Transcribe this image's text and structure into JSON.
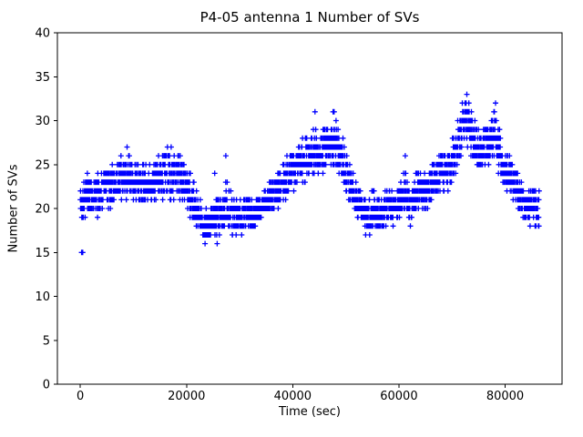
{
  "chart_data": {
    "type": "scatter",
    "title": "P4-05 antenna 1 Number of SVs",
    "xlabel": "Time (sec)",
    "ylabel": "Number of SVs",
    "xlim": [
      -4320,
      90720
    ],
    "ylim": [
      0,
      40
    ],
    "xticks": [
      0,
      20000,
      40000,
      60000,
      80000
    ],
    "yticks": [
      0,
      5,
      10,
      15,
      20,
      25,
      30,
      35,
      40
    ],
    "grid": false,
    "legend": "none",
    "marker": "+",
    "marker_color": "#0000ff",
    "sample_interval_sec": 30,
    "x_range_sec": [
      0,
      86400
    ],
    "band": [
      [
        0,
        18,
        23
      ],
      [
        1000,
        19,
        24
      ],
      [
        3000,
        19,
        24
      ],
      [
        5000,
        20,
        25
      ],
      [
        7000,
        20,
        26
      ],
      [
        9000,
        21,
        26
      ],
      [
        11000,
        20,
        26
      ],
      [
        13000,
        20,
        25
      ],
      [
        15000,
        21,
        26
      ],
      [
        16000,
        21,
        27
      ],
      [
        18000,
        21,
        27
      ],
      [
        19500,
        21,
        26
      ],
      [
        20500,
        19,
        24
      ],
      [
        21500,
        18,
        23
      ],
      [
        22500,
        17,
        21
      ],
      [
        23500,
        16,
        20
      ],
      [
        24500,
        16,
        21
      ],
      [
        25500,
        16,
        22
      ],
      [
        26500,
        17,
        22
      ],
      [
        27500,
        17,
        24
      ],
      [
        28500,
        17,
        22
      ],
      [
        29500,
        17,
        21
      ],
      [
        31000,
        17,
        22
      ],
      [
        32500,
        17,
        21
      ],
      [
        33500,
        18,
        22
      ],
      [
        35000,
        19,
        23
      ],
      [
        36500,
        19,
        24
      ],
      [
        38000,
        21,
        25
      ],
      [
        39000,
        21,
        26
      ],
      [
        40000,
        22,
        27
      ],
      [
        41000,
        22,
        28
      ],
      [
        42000,
        22,
        29
      ],
      [
        43000,
        23,
        28
      ],
      [
        44000,
        23,
        30
      ],
      [
        45000,
        23,
        29
      ],
      [
        46000,
        24,
        30
      ],
      [
        47000,
        24,
        31
      ],
      [
        48000,
        24,
        31
      ],
      [
        49000,
        23,
        29
      ],
      [
        50000,
        21,
        27
      ],
      [
        51000,
        20,
        25
      ],
      [
        52000,
        19,
        23
      ],
      [
        53000,
        18,
        22
      ],
      [
        54000,
        16,
        21
      ],
      [
        55000,
        17,
        22
      ],
      [
        56500,
        17,
        22
      ],
      [
        58000,
        18,
        23
      ],
      [
        59500,
        18,
        22
      ],
      [
        61000,
        19,
        25
      ],
      [
        62000,
        18,
        23
      ],
      [
        63000,
        19,
        24
      ],
      [
        64000,
        19,
        25
      ],
      [
        65000,
        20,
        24
      ],
      [
        66000,
        20,
        25
      ],
      [
        67000,
        21,
        26
      ],
      [
        68000,
        22,
        27
      ],
      [
        69500,
        22,
        27
      ],
      [
        70500,
        23,
        29
      ],
      [
        71500,
        25,
        31
      ],
      [
        72500,
        27,
        33
      ],
      [
        73500,
        26,
        32
      ],
      [
        74500,
        24,
        30
      ],
      [
        75500,
        24,
        29
      ],
      [
        76500,
        24,
        30
      ],
      [
        77500,
        25,
        31
      ],
      [
        78000,
        25,
        32
      ],
      [
        79000,
        23,
        29
      ],
      [
        80000,
        22,
        27
      ],
      [
        81000,
        21,
        26
      ],
      [
        82000,
        20,
        25
      ],
      [
        83000,
        19,
        24
      ],
      [
        84000,
        18,
        23
      ],
      [
        85500,
        18,
        23
      ],
      [
        86400,
        17,
        22
      ]
    ],
    "outliers": [
      [
        250,
        15
      ],
      [
        450,
        15
      ],
      [
        8800,
        27
      ],
      [
        25300,
        24
      ],
      [
        27400,
        26
      ],
      [
        61200,
        26
      ],
      [
        44200,
        31
      ],
      [
        47600,
        31
      ],
      [
        72800,
        33
      ],
      [
        78200,
        32
      ]
    ]
  }
}
